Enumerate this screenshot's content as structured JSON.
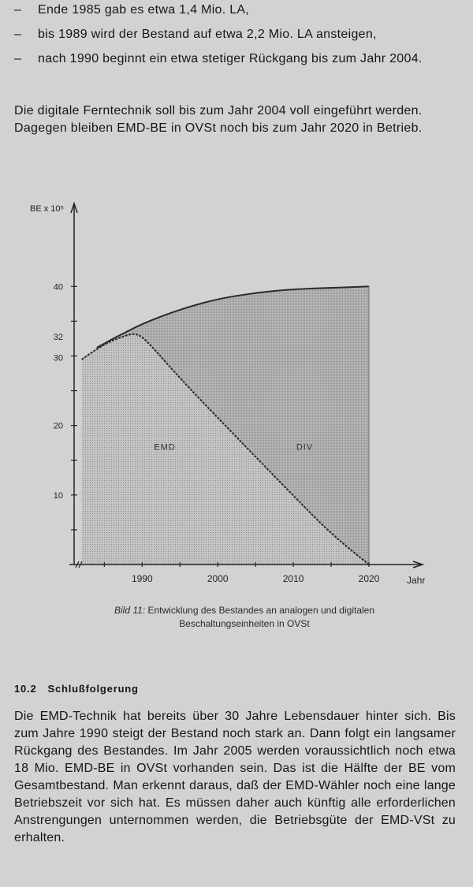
{
  "bullets": [
    {
      "dash": "–",
      "text": "Ende 1985 gab es etwa 1,4 Mio. LA,"
    },
    {
      "dash": "–",
      "text": "bis 1989 wird der Bestand auf etwa 2,2 Mio. LA ansteigen,"
    },
    {
      "dash": "–",
      "text": "nach 1990 beginnt ein etwa stetiger Rückgang bis zum Jahr 2004."
    }
  ],
  "paragraph_1": "Die digitale Ferntechnik soll bis zum Jahr 2004 voll eingeführt werden. Dagegen bleiben EMD-BE in OVSt noch bis zum Jahr 2020 in Betrieb.",
  "chart_data": {
    "type": "area",
    "ylabel": "BE x 10⁶",
    "xlabel": "Jahr",
    "xlim": [
      1981,
      2020
    ],
    "ylim": [
      0,
      44
    ],
    "x_ticks": [
      1990,
      2000,
      2010,
      2020
    ],
    "y_ticks": [
      "10",
      "20",
      "30",
      "32",
      "40"
    ],
    "regions": [
      "EMD",
      "DIV"
    ],
    "series": [
      {
        "name": "EMD",
        "x": [
          1982,
          1984,
          1986,
          1988,
          1989,
          1990,
          1992,
          1995,
          2000,
          2005,
          2010,
          2015,
          2020
        ],
        "y": [
          29.5,
          31,
          32.2,
          33,
          33.2,
          32.8,
          30.5,
          26.8,
          21.1,
          15.5,
          9.9,
          4.4,
          0
        ]
      },
      {
        "x": [
          1984,
          1986,
          1988,
          1990,
          1993,
          1996,
          2000,
          2005,
          2010,
          2015,
          2020
        ],
        "y": [
          31.2,
          32.4,
          33.5,
          34.6,
          35.9,
          37,
          38.2,
          39.1,
          39.6,
          39.8,
          40
        ]
      }
    ]
  },
  "caption": {
    "label": "Bild 11:",
    "text": "Entwicklung des Bestandes an analogen und digitalen Beschaltungseinheiten in OVSt"
  },
  "section": {
    "number": "10.2",
    "title": "Schlußfolgerung"
  },
  "paragraph_2": "Die EMD-Technik hat bereits über 30 Jahre Lebensdauer hinter sich. Bis zum Jahre 1990 steigt der Bestand noch stark an. Dann folgt ein langsamer Rückgang des Bestandes. Im Jahr 2005 werden voraussichtlich noch etwa 18 Mio. EMD-BE in OVSt vorhanden sein. Das ist die Hälfte der BE vom Gesamtbestand. Man erkennt daraus, daß der EMD-Wähler noch eine lange Betriebszeit vor sich hat. Es müssen daher auch künftig alle erforderlichen Anstrengungen unternommen werden, die Betriebsgüte der EMD-VSt zu erhalten.",
  "colors": {
    "paper": "#d2d2d2",
    "ink": "#161616",
    "div_fill": "#b4b4b4",
    "emd_fill": "#c1c1c1"
  }
}
